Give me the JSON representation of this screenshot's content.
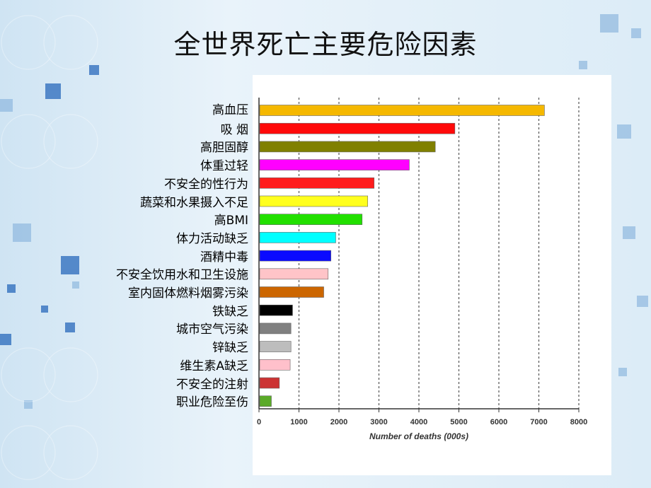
{
  "slide": {
    "title": "全世界死亡主要危险因素"
  },
  "chart_data": {
    "type": "bar",
    "orientation": "horizontal",
    "title": "",
    "xlabel": "Number of deaths (000s)",
    "ylabel": "",
    "xlim": [
      0,
      8000
    ],
    "x_ticks": [
      0,
      1000,
      2000,
      3000,
      4000,
      5000,
      6000,
      7000,
      8000
    ],
    "grid": "vertical dashed",
    "categories": [
      "高血压",
      "吸  烟",
      "高胆固醇",
      "体重过轻",
      "不安全的性行为",
      "蔬菜和水果摄入不足",
      "高BMI",
      "体力活动缺乏",
      "酒精中毒",
      "不安全饮用水和卫生设施",
      "室内固体燃料烟雾污染",
      "铁缺乏",
      "城市空气污染",
      "锌缺乏",
      "维生素A缺乏",
      "不安全的注射",
      "职业危险至伤"
    ],
    "values": [
      7140,
      4900,
      4410,
      3760,
      2880,
      2720,
      2580,
      1920,
      1800,
      1730,
      1620,
      840,
      800,
      800,
      780,
      510,
      310
    ],
    "colors": [
      "#f5b800",
      "#ff0a0a",
      "#808000",
      "#ff00ff",
      "#ff1c1c",
      "#ffff1e",
      "#22e000",
      "#00ffff",
      "#0a0aff",
      "#ffc4c8",
      "#cc6600",
      "#000000",
      "#808080",
      "#bdbdbd",
      "#ffc0cb",
      "#cc3333",
      "#5aaa28"
    ]
  }
}
